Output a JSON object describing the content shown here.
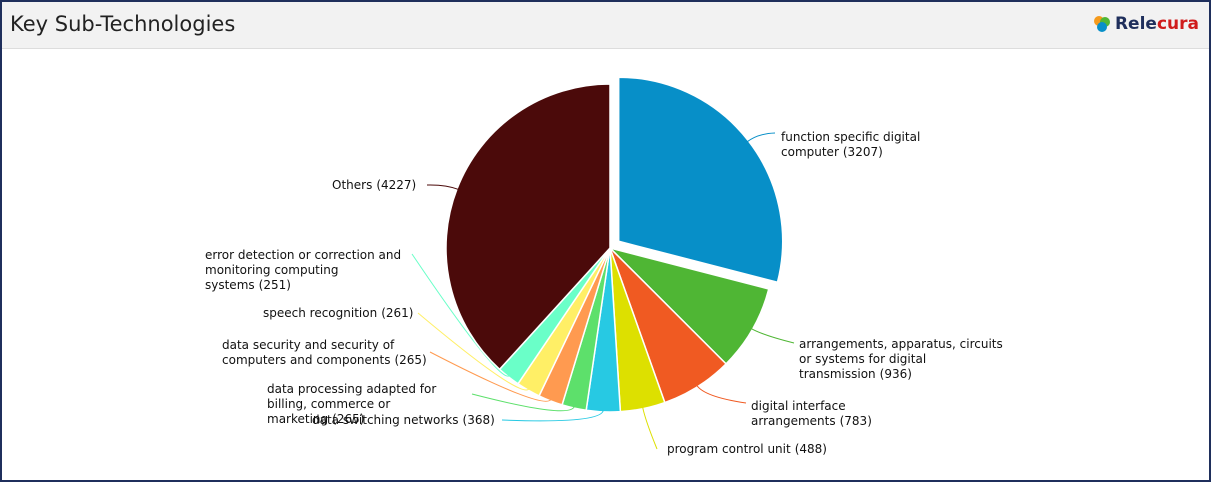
{
  "header": {
    "title": "Key Sub-Technologies",
    "logo": [
      "Rele",
      "cura"
    ]
  },
  "chart_data": {
    "type": "pie",
    "categories": [
      "function specific digital computer",
      "arrangements, apparatus, circuits or systems for digital transmission",
      "digital interface arrangements",
      "program control unit",
      "data switching networks",
      "data processing adapted for billing, commerce or marketing",
      "data security and security of computers and components",
      "speech recognition",
      "error detection or correction and monitoring computing systems",
      "Others"
    ],
    "values": [
      3207,
      936,
      783,
      488,
      368,
      265,
      265,
      261,
      251,
      4227
    ],
    "value_labels": [
      "(3207)",
      "(936)",
      "(783)",
      "(488)",
      "(368)",
      "(265)",
      "(265)",
      "(261)",
      "(251)",
      "(4227)"
    ],
    "colors": [
      "#078fc8",
      "#4fb634",
      "#f05a22",
      "#dde000",
      "#27c9e3",
      "#5de06b",
      "#ff9a50",
      "#ffef66",
      "#6affc8",
      "#4b0a0a"
    ],
    "exploded": [
      0
    ]
  }
}
